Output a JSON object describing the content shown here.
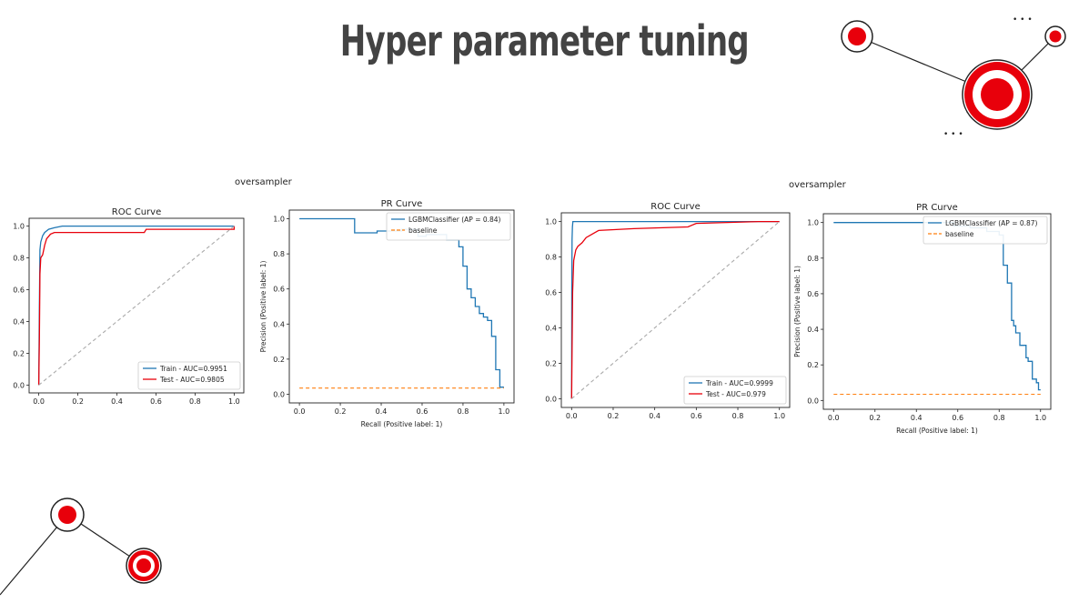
{
  "slide": {
    "title": "Hyper parameter tuning"
  },
  "decor": {
    "accent_color": "#e8000b",
    "dots_label": "• • •"
  },
  "figures": [
    {
      "title": "oversampler"
    },
    {
      "title": "oversampler"
    }
  ],
  "chart_data": [
    {
      "type": "line",
      "title": "ROC Curve",
      "xlim": [
        0,
        1
      ],
      "ylim": [
        0,
        1
      ],
      "xticks": [
        "0.0",
        "0.2",
        "0.4",
        "0.6",
        "0.8",
        "1.0"
      ],
      "yticks": [
        "0.0",
        "0.2",
        "0.4",
        "0.6",
        "0.8",
        "1.0"
      ],
      "legend": "lower-right",
      "series": [
        {
          "name": "Train - AUC=0.9951",
          "color": "#1f77b4",
          "style": "solid",
          "points": [
            [
              0,
              0
            ],
            [
              0.003,
              0.5
            ],
            [
              0.006,
              0.85
            ],
            [
              0.01,
              0.9
            ],
            [
              0.02,
              0.94
            ],
            [
              0.03,
              0.96
            ],
            [
              0.05,
              0.98
            ],
            [
              0.08,
              0.99
            ],
            [
              0.12,
              1.0
            ],
            [
              1,
              1
            ]
          ]
        },
        {
          "name": "Test - AUC=0.9805",
          "color": "#e8000b",
          "style": "solid",
          "points": [
            [
              0,
              0
            ],
            [
              0.003,
              0.3
            ],
            [
              0.006,
              0.7
            ],
            [
              0.01,
              0.8
            ],
            [
              0.02,
              0.82
            ],
            [
              0.03,
              0.88
            ],
            [
              0.04,
              0.92
            ],
            [
              0.06,
              0.95
            ],
            [
              0.08,
              0.96
            ],
            [
              0.54,
              0.96
            ],
            [
              0.55,
              0.98
            ],
            [
              1,
              0.98
            ],
            [
              1,
              1
            ]
          ]
        },
        {
          "name": "",
          "color": "#aaaaaa",
          "style": "dashed",
          "points": [
            [
              0,
              0
            ],
            [
              1,
              1
            ]
          ]
        }
      ]
    },
    {
      "type": "line",
      "title": "PR Curve",
      "xlabel": "Recall (Positive label: 1)",
      "ylabel": "Precision (Positive label: 1)",
      "xlim": [
        0,
        1
      ],
      "ylim": [
        0,
        1
      ],
      "xticks": [
        "0.0",
        "0.2",
        "0.4",
        "0.6",
        "0.8",
        "1.0"
      ],
      "yticks": [
        "0.0",
        "0.2",
        "0.4",
        "0.6",
        "0.8",
        "1.0"
      ],
      "legend": "top-right",
      "series": [
        {
          "name": "LGBMClassifier (AP = 0.84)",
          "color": "#1f77b4",
          "style": "steps",
          "points": [
            [
              0,
              1
            ],
            [
              0.27,
              1
            ],
            [
              0.27,
              0.92
            ],
            [
              0.38,
              0.92
            ],
            [
              0.38,
              0.93
            ],
            [
              0.5,
              0.93
            ],
            [
              0.5,
              0.94
            ],
            [
              0.58,
              0.94
            ],
            [
              0.58,
              0.9
            ],
            [
              0.62,
              0.9
            ],
            [
              0.62,
              0.91
            ],
            [
              0.72,
              0.91
            ],
            [
              0.72,
              0.88
            ],
            [
              0.78,
              0.88
            ],
            [
              0.78,
              0.84
            ],
            [
              0.8,
              0.84
            ],
            [
              0.8,
              0.73
            ],
            [
              0.82,
              0.73
            ],
            [
              0.82,
              0.6
            ],
            [
              0.84,
              0.6
            ],
            [
              0.84,
              0.55
            ],
            [
              0.86,
              0.55
            ],
            [
              0.86,
              0.5
            ],
            [
              0.88,
              0.5
            ],
            [
              0.88,
              0.46
            ],
            [
              0.9,
              0.46
            ],
            [
              0.9,
              0.44
            ],
            [
              0.92,
              0.44
            ],
            [
              0.92,
              0.42
            ],
            [
              0.94,
              0.42
            ],
            [
              0.94,
              0.33
            ],
            [
              0.96,
              0.33
            ],
            [
              0.96,
              0.14
            ],
            [
              0.98,
              0.14
            ],
            [
              0.98,
              0.04
            ],
            [
              1,
              0.04
            ]
          ]
        },
        {
          "name": "baseline",
          "color": "#ff7f0e",
          "style": "dashed",
          "points": [
            [
              0,
              0.035
            ],
            [
              1,
              0.035
            ]
          ]
        }
      ]
    },
    {
      "type": "line",
      "title": "ROC Curve",
      "xlim": [
        0,
        1
      ],
      "ylim": [
        0,
        1
      ],
      "xticks": [
        "0.0",
        "0.2",
        "0.4",
        "0.6",
        "0.8",
        "1.0"
      ],
      "yticks": [
        "0.0",
        "0.2",
        "0.4",
        "0.6",
        "0.8",
        "1.0"
      ],
      "legend": "lower-right",
      "series": [
        {
          "name": "Train - AUC=0.9999",
          "color": "#1f77b4",
          "style": "solid",
          "points": [
            [
              0,
              0
            ],
            [
              0.001,
              0.6
            ],
            [
              0.002,
              0.9
            ],
            [
              0.004,
              0.97
            ],
            [
              0.006,
              1.0
            ],
            [
              1,
              1
            ]
          ]
        },
        {
          "name": "Test - AUC=0.979",
          "color": "#e8000b",
          "style": "solid",
          "points": [
            [
              0,
              0
            ],
            [
              0.005,
              0.6
            ],
            [
              0.01,
              0.78
            ],
            [
              0.02,
              0.84
            ],
            [
              0.03,
              0.86
            ],
            [
              0.05,
              0.88
            ],
            [
              0.07,
              0.91
            ],
            [
              0.1,
              0.93
            ],
            [
              0.13,
              0.95
            ],
            [
              0.3,
              0.96
            ],
            [
              0.56,
              0.97
            ],
            [
              0.6,
              0.99
            ],
            [
              0.9,
              1.0
            ],
            [
              1,
              1
            ]
          ]
        },
        {
          "name": "",
          "color": "#aaaaaa",
          "style": "dashed",
          "points": [
            [
              0,
              0
            ],
            [
              1,
              1
            ]
          ]
        }
      ]
    },
    {
      "type": "line",
      "title": "PR Curve",
      "xlabel": "Recall (Positive label: 1)",
      "ylabel": "Precision (Positive label: 1)",
      "xlim": [
        0,
        1
      ],
      "ylim": [
        0,
        1
      ],
      "xticks": [
        "0.0",
        "0.2",
        "0.4",
        "0.6",
        "0.8",
        "1.0"
      ],
      "yticks": [
        "0.0",
        "0.2",
        "0.4",
        "0.6",
        "0.8",
        "1.0"
      ],
      "legend": "top-right",
      "series": [
        {
          "name": "LGBMClassifier (AP = 0.87)",
          "color": "#1f77b4",
          "style": "steps",
          "points": [
            [
              0,
              1
            ],
            [
              0.58,
              1
            ],
            [
              0.58,
              0.98
            ],
            [
              0.66,
              0.98
            ],
            [
              0.66,
              0.97
            ],
            [
              0.74,
              0.97
            ],
            [
              0.74,
              0.95
            ],
            [
              0.8,
              0.95
            ],
            [
              0.8,
              0.93
            ],
            [
              0.82,
              0.93
            ],
            [
              0.82,
              0.76
            ],
            [
              0.84,
              0.76
            ],
            [
              0.84,
              0.66
            ],
            [
              0.86,
              0.66
            ],
            [
              0.86,
              0.45
            ],
            [
              0.87,
              0.45
            ],
            [
              0.87,
              0.42
            ],
            [
              0.88,
              0.42
            ],
            [
              0.88,
              0.38
            ],
            [
              0.9,
              0.38
            ],
            [
              0.9,
              0.31
            ],
            [
              0.93,
              0.31
            ],
            [
              0.93,
              0.24
            ],
            [
              0.94,
              0.24
            ],
            [
              0.94,
              0.22
            ],
            [
              0.96,
              0.22
            ],
            [
              0.96,
              0.12
            ],
            [
              0.98,
              0.12
            ],
            [
              0.98,
              0.1
            ],
            [
              0.99,
              0.1
            ],
            [
              0.99,
              0.06
            ],
            [
              1,
              0.06
            ]
          ]
        },
        {
          "name": "baseline",
          "color": "#ff7f0e",
          "style": "dashed",
          "points": [
            [
              0,
              0.035
            ],
            [
              1,
              0.035
            ]
          ]
        }
      ]
    }
  ]
}
